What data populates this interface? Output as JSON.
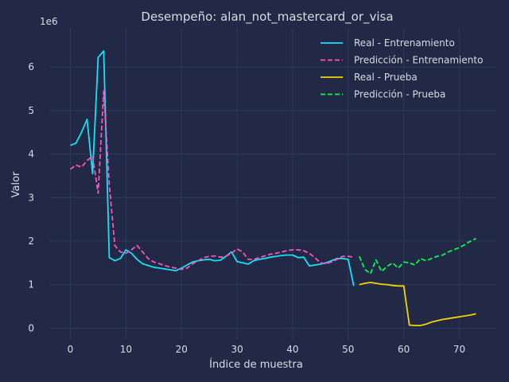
{
  "chart_data": {
    "type": "line",
    "title": "Desempeño: alan_not_mastercard_or_visa",
    "xlabel": "Índice de muestra",
    "ylabel": "Valor",
    "y_multiplier_label": "1e6",
    "xlim": [
      -3.65,
      76.65
    ],
    "ylim": [
      -0.25,
      6.9
    ],
    "x_ticks": [
      0,
      10,
      20,
      30,
      40,
      50,
      60,
      70
    ],
    "y_ticks": [
      0,
      1,
      2,
      3,
      4,
      5,
      6
    ],
    "grid": true,
    "legend_position": "top-right",
    "series": [
      {
        "name": "Real - Entrenamiento",
        "color": "#18e1f7",
        "dash": "solid",
        "x": [
          0,
          1,
          2,
          3,
          4,
          5,
          6,
          7,
          8,
          9,
          10,
          11,
          12,
          13,
          14,
          15,
          16,
          17,
          18,
          19,
          20,
          21,
          22,
          23,
          24,
          25,
          26,
          27,
          28,
          29,
          30,
          31,
          32,
          33,
          34,
          35,
          36,
          37,
          38,
          39,
          40,
          41,
          42,
          43,
          44,
          45,
          46,
          47,
          48,
          49,
          50,
          51
        ],
        "values": [
          4.2,
          4.25,
          4.5,
          4.8,
          3.55,
          6.22,
          6.37,
          1.62,
          1.55,
          1.6,
          1.8,
          1.72,
          1.58,
          1.48,
          1.44,
          1.4,
          1.38,
          1.36,
          1.34,
          1.32,
          1.38,
          1.45,
          1.52,
          1.55,
          1.57,
          1.58,
          1.55,
          1.56,
          1.65,
          1.75,
          1.53,
          1.5,
          1.47,
          1.55,
          1.58,
          1.6,
          1.63,
          1.65,
          1.67,
          1.68,
          1.68,
          1.62,
          1.63,
          1.43,
          1.45,
          1.47,
          1.5,
          1.55,
          1.6,
          1.6,
          1.58,
          0.97
        ]
      },
      {
        "name": "Predicción - Entrenamiento",
        "color": "#fe53bb",
        "dash": "dashed",
        "x": [
          0,
          1,
          2,
          3,
          4,
          5,
          6,
          7,
          8,
          9,
          10,
          11,
          12,
          13,
          14,
          15,
          16,
          17,
          18,
          19,
          20,
          21,
          22,
          23,
          24,
          25,
          26,
          27,
          28,
          29,
          30,
          31,
          32,
          33,
          34,
          35,
          36,
          37,
          38,
          39,
          40,
          41,
          42,
          43,
          44,
          45,
          46,
          47,
          48,
          49,
          50,
          51
        ],
        "values": [
          3.65,
          3.75,
          3.7,
          3.85,
          3.95,
          3.1,
          5.45,
          3.3,
          1.9,
          1.75,
          1.72,
          1.8,
          1.9,
          1.75,
          1.6,
          1.52,
          1.48,
          1.44,
          1.4,
          1.38,
          1.35,
          1.38,
          1.48,
          1.55,
          1.62,
          1.65,
          1.66,
          1.63,
          1.65,
          1.72,
          1.82,
          1.75,
          1.58,
          1.58,
          1.62,
          1.66,
          1.7,
          1.72,
          1.75,
          1.78,
          1.8,
          1.8,
          1.78,
          1.72,
          1.62,
          1.5,
          1.48,
          1.52,
          1.58,
          1.65,
          1.65,
          1.63
        ]
      },
      {
        "name": "Real - Prueba",
        "color": "#f5d300",
        "dash": "solid",
        "x": [
          52,
          53,
          54,
          55,
          56,
          57,
          58,
          59,
          60,
          61,
          62,
          63,
          64,
          65,
          66,
          67,
          68,
          69,
          70,
          71,
          72,
          73
        ],
        "values": [
          1.0,
          1.03,
          1.05,
          1.03,
          1.01,
          1.0,
          0.98,
          0.97,
          0.97,
          0.07,
          0.06,
          0.06,
          0.09,
          0.14,
          0.17,
          0.2,
          0.22,
          0.24,
          0.26,
          0.28,
          0.3,
          0.33
        ]
      },
      {
        "name": "Predicción - Prueba",
        "color": "#08f74a",
        "dash": "dashed",
        "x": [
          52,
          53,
          54,
          55,
          56,
          57,
          58,
          59,
          60,
          61,
          62,
          63,
          64,
          65,
          66,
          67,
          68,
          69,
          70,
          71,
          72,
          73
        ],
        "values": [
          1.65,
          1.35,
          1.25,
          1.57,
          1.3,
          1.42,
          1.5,
          1.38,
          1.52,
          1.5,
          1.45,
          1.6,
          1.55,
          1.6,
          1.65,
          1.68,
          1.75,
          1.8,
          1.85,
          1.92,
          2.0,
          2.06
        ]
      }
    ]
  }
}
